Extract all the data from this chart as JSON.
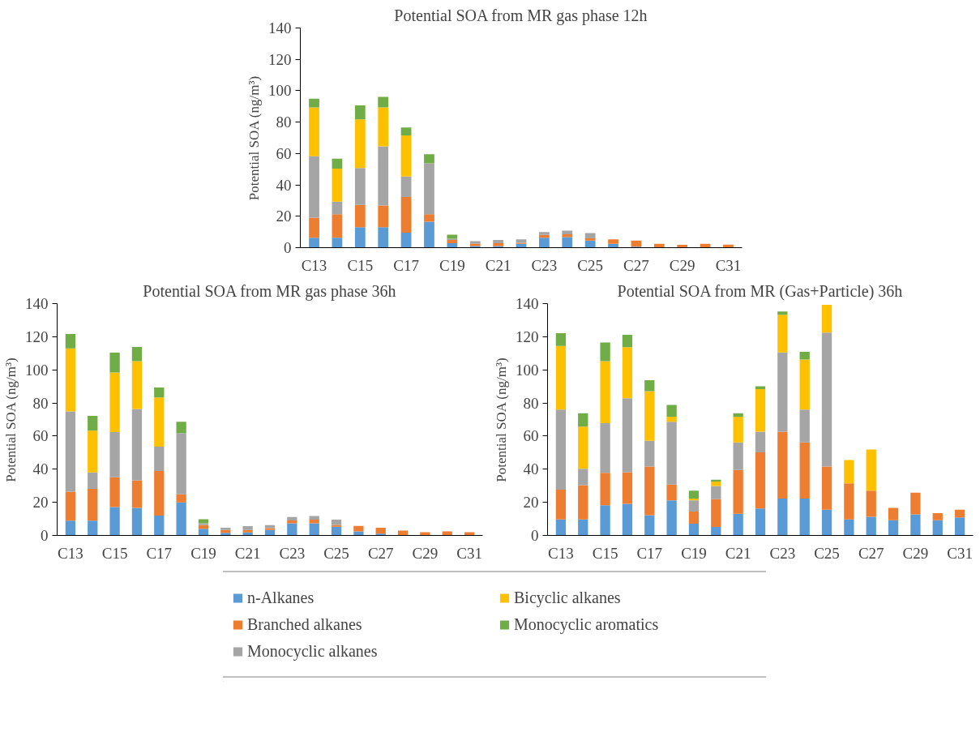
{
  "chart_data": [
    {
      "type": "bar",
      "stacked": true,
      "title": "Potential SOA from MR gas phase 12h",
      "ylabel": "Potential SOA (ng/m³)",
      "categories": [
        "C13",
        null,
        "C15",
        null,
        "C17",
        null,
        "C19",
        null,
        "C21",
        null,
        "C23",
        null,
        "C25",
        null,
        "C27",
        null,
        "C29",
        null,
        "C31"
      ],
      "ylim": [
        0,
        140
      ],
      "yticks": [
        0,
        20,
        40,
        60,
        80,
        100,
        120,
        140
      ],
      "grid": false,
      "series": [
        {
          "color": "#5b9bd5",
          "values": [
            6.3,
            6.3,
            13,
            13,
            9.6,
            16.5,
            2.8,
            1,
            1,
            2.4,
            6.3,
            6.7,
            4.5,
            2.4,
            0.6,
            0,
            0,
            0,
            0
          ]
        },
        {
          "color": "#ed7d31",
          "values": [
            12.8,
            15,
            14.2,
            13.8,
            22.7,
            4.8,
            2.1,
            1.6,
            1.8,
            0.7,
            1.8,
            1.8,
            1.4,
            2.9,
            3.9,
            2.4,
            1.8,
            2.4,
            2
          ]
        },
        {
          "color": "#a5a5a5",
          "values": [
            39.2,
            8,
            23.6,
            37.8,
            13,
            32.4,
            0.8,
            1.5,
            2.1,
            2.2,
            1.9,
            2.3,
            3.4,
            0,
            0,
            0,
            0,
            0,
            0
          ]
        },
        {
          "color": "#ffc000",
          "values": [
            31.1,
            21.1,
            30.9,
            24.8,
            26.2,
            0,
            0,
            0,
            0,
            0,
            0,
            0,
            0,
            0,
            0,
            0,
            0,
            0,
            0
          ]
        },
        {
          "color": "#70ad47",
          "values": [
            5.5,
            6.3,
            8.9,
            6.7,
            5.1,
            5.9,
            2.6,
            0,
            0,
            0,
            0,
            0,
            0,
            0,
            0,
            0,
            0,
            0,
            0
          ]
        }
      ]
    },
    {
      "type": "bar",
      "stacked": true,
      "title": "Potential SOA from MR gas phase 36h",
      "ylabel": "Potential SOA (ng/m³)",
      "categories": [
        "C13",
        null,
        "C15",
        null,
        "C17",
        null,
        "C19",
        null,
        "C21",
        null,
        "C23",
        null,
        "C25",
        null,
        "C27",
        null,
        "C29",
        null,
        "C31"
      ],
      "ylim": [
        0,
        140
      ],
      "yticks": [
        0,
        20,
        40,
        60,
        80,
        100,
        120,
        140
      ],
      "grid": false,
      "series": [
        {
          "color": "#5b9bd5",
          "values": [
            8.9,
            8.9,
            17.1,
            16.7,
            12,
            20,
            4,
            1.6,
            1.8,
            3.3,
            7.3,
            7.3,
            5.3,
            2.4,
            1.1,
            0,
            0,
            0,
            0
          ]
        },
        {
          "color": "#ed7d31",
          "values": [
            17.5,
            19.3,
            18,
            16.6,
            26.9,
            4.9,
            2.2,
            1.7,
            1.5,
            1.1,
            1.8,
            2.3,
            1.1,
            3.4,
            3.6,
            2.9,
            2,
            2.4,
            2
          ]
        },
        {
          "color": "#a5a5a5",
          "values": [
            48.5,
            9.8,
            27.3,
            43.1,
            14.7,
            36.9,
            1.1,
            1.4,
            2.3,
            1.8,
            2,
            2.2,
            3.2,
            0,
            0,
            0,
            0,
            0,
            0
          ]
        },
        {
          "color": "#ffc000",
          "values": [
            38,
            25.3,
            36,
            28.9,
            29.7,
            0,
            0,
            0,
            0,
            0,
            0,
            0,
            0,
            0,
            0,
            0,
            0,
            0,
            0
          ]
        },
        {
          "color": "#70ad47",
          "values": [
            8.7,
            8.9,
            12,
            8.5,
            6,
            6.9,
            2.5,
            0,
            0,
            0,
            0,
            0,
            0,
            0,
            0,
            0,
            0,
            0,
            0
          ]
        }
      ]
    },
    {
      "type": "bar",
      "stacked": true,
      "title": "Potential SOA from MR (Gas+Particle) 36h",
      "ylabel": "Potential SOA (ng/m³)",
      "categories": [
        "C13",
        null,
        "C15",
        null,
        "C17",
        null,
        "C19",
        null,
        "C21",
        null,
        "C23",
        null,
        "C25",
        null,
        "C27",
        null,
        "C29",
        null,
        "C31"
      ],
      "ylim": [
        0,
        140
      ],
      "yticks": [
        0,
        20,
        40,
        60,
        80,
        100,
        120,
        140
      ],
      "grid": false,
      "legend": "bottom",
      "series": [
        {
          "name": "n-Alkanes",
          "color": "#5b9bd5",
          "values": [
            9.7,
            9.7,
            18.2,
            19.1,
            12.2,
            21.2,
            7.1,
            5.2,
            13.1,
            16.3,
            22.3,
            22.3,
            15.5,
            9.7,
            11.2,
            9.2,
            12.7,
            9.2,
            10.9
          ]
        },
        {
          "name": "Branched alkanes",
          "color": "#ed7d31",
          "values": [
            18,
            20.6,
            19.6,
            19.1,
            29.4,
            9.5,
            7.3,
            16.7,
            26.4,
            33.9,
            40.4,
            33.9,
            26.1,
            21.8,
            15.8,
            7.5,
            13.1,
            4.3,
            4.6
          ]
        },
        {
          "name": "Monocyclic alkanes",
          "color": "#a5a5a5",
          "values": [
            48.3,
            10,
            30,
            44.6,
            15.5,
            38,
            6.8,
            7.9,
            16.7,
            12.5,
            47.8,
            19.8,
            80.9,
            0,
            0,
            0,
            0,
            0,
            0
          ]
        },
        {
          "name": "Bicyclic alkanes",
          "color": "#ffc000",
          "values": [
            38.4,
            25.4,
            37.4,
            30.9,
            30,
            3,
            1.1,
            2.8,
            15.5,
            25.7,
            22.8,
            30.2,
            16.8,
            14,
            24.9,
            0,
            0,
            0,
            0
          ]
        },
        {
          "name": "Monocyclic aromatics",
          "color": "#70ad47",
          "values": [
            7.7,
            8.1,
            11.3,
            7.5,
            6.7,
            7.1,
            4.7,
            1.1,
            2.1,
            1.7,
            1.9,
            4.7,
            0,
            0,
            0,
            0,
            0,
            0,
            0
          ]
        }
      ]
    }
  ]
}
